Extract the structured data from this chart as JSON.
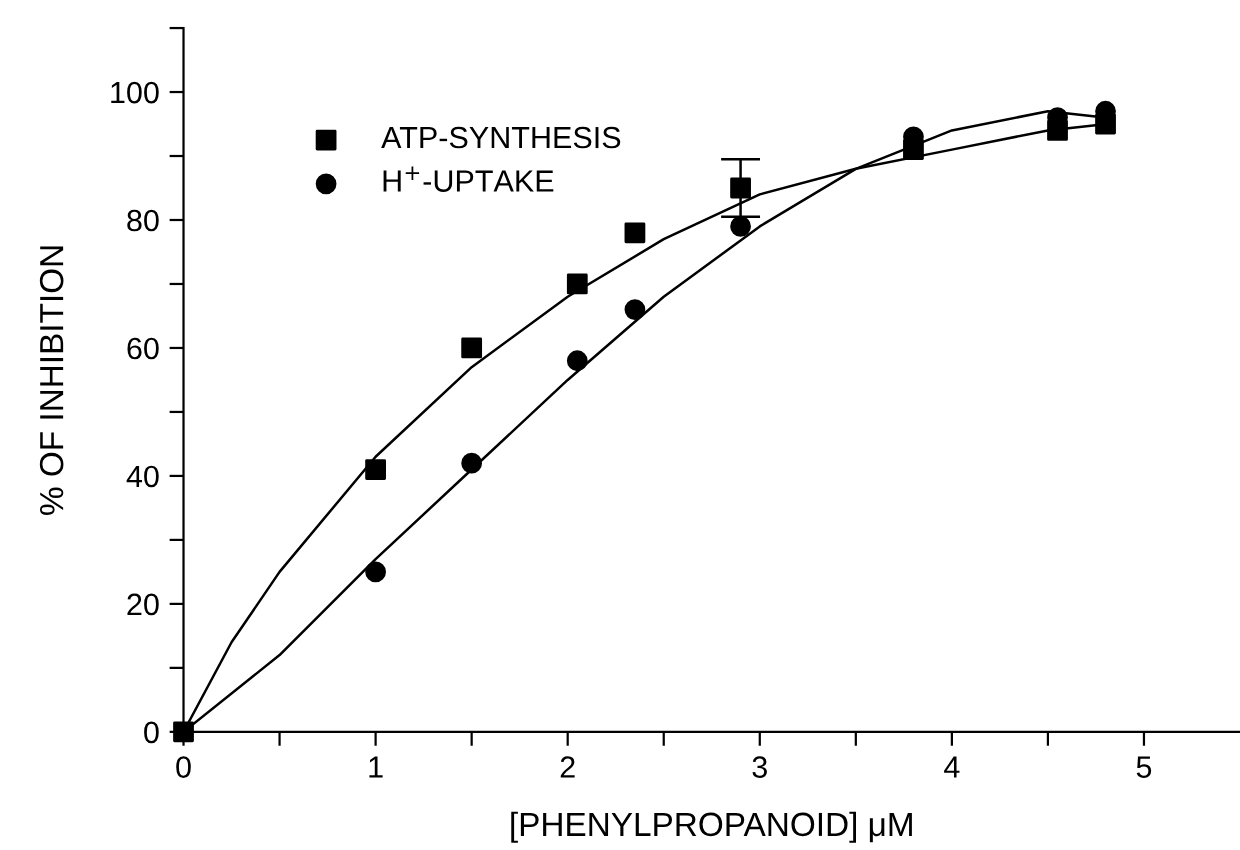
{
  "chart_data": {
    "type": "scatter",
    "xlabel": "[PHENYLPROPANOID] μM",
    "ylabel": "% OF INHIBITION",
    "xlim": [
      0,
      5.5
    ],
    "ylim": [
      0,
      110
    ],
    "xticks": [
      0,
      {
        "value": 0.5,
        "label": null
      },
      1,
      {
        "value": 1.5,
        "label": null
      },
      2,
      {
        "value": 2.5,
        "label": null
      },
      3,
      {
        "value": 3.5,
        "label": null
      },
      4,
      {
        "value": 4.5,
        "label": null
      },
      5
    ],
    "yticks": [
      0,
      {
        "value": 10,
        "label": null
      },
      20,
      {
        "value": 30,
        "label": null
      },
      40,
      {
        "value": 50,
        "label": null
      },
      60,
      {
        "value": 70,
        "label": null
      },
      80,
      {
        "value": 90,
        "label": null
      },
      100,
      {
        "value": 110,
        "label": null
      }
    ],
    "grid": false,
    "legend": "top left",
    "series": [
      {
        "name": "ATP-SYNTHESIS",
        "color": "#000000",
        "marker": "square",
        "x": [
          0,
          1,
          1.5,
          2.05,
          2.35,
          2.9,
          3.8,
          4.55,
          4.8
        ],
        "values": [
          0,
          41,
          60,
          70,
          78,
          85,
          91,
          94,
          95
        ],
        "errors": [
          null,
          null,
          null,
          null,
          null,
          4.5,
          null,
          null,
          null
        ]
      },
      {
        "name": "H$^{+}$-UPTAKE",
        "color": "#000000",
        "marker": "circle",
        "x": [
          1,
          1.5,
          2.05,
          2.35,
          2.9,
          3.8,
          4.55,
          4.8
        ],
        "values": [
          25,
          42,
          58,
          66,
          79,
          93,
          96,
          97
        ]
      },
      {
        "type": "line",
        "color": "#000000",
        "marker": "none",
        "x": [
          0,
          0.25,
          0.5,
          1,
          1.5,
          2,
          2.5,
          3,
          3.5,
          4,
          4.5,
          4.8
        ],
        "values": [
          0,
          14,
          25,
          43,
          57,
          68,
          77,
          84,
          88,
          91,
          94,
          95
        ]
      },
      {
        "type": "line",
        "color": "#000000",
        "marker": "none",
        "x": [
          0,
          0.5,
          1,
          1.5,
          2,
          2.5,
          3,
          3.5,
          4,
          4.5,
          4.8
        ],
        "values": [
          0,
          12,
          27,
          41,
          55,
          68,
          79,
          88,
          94,
          97,
          96
        ]
      }
    ]
  }
}
